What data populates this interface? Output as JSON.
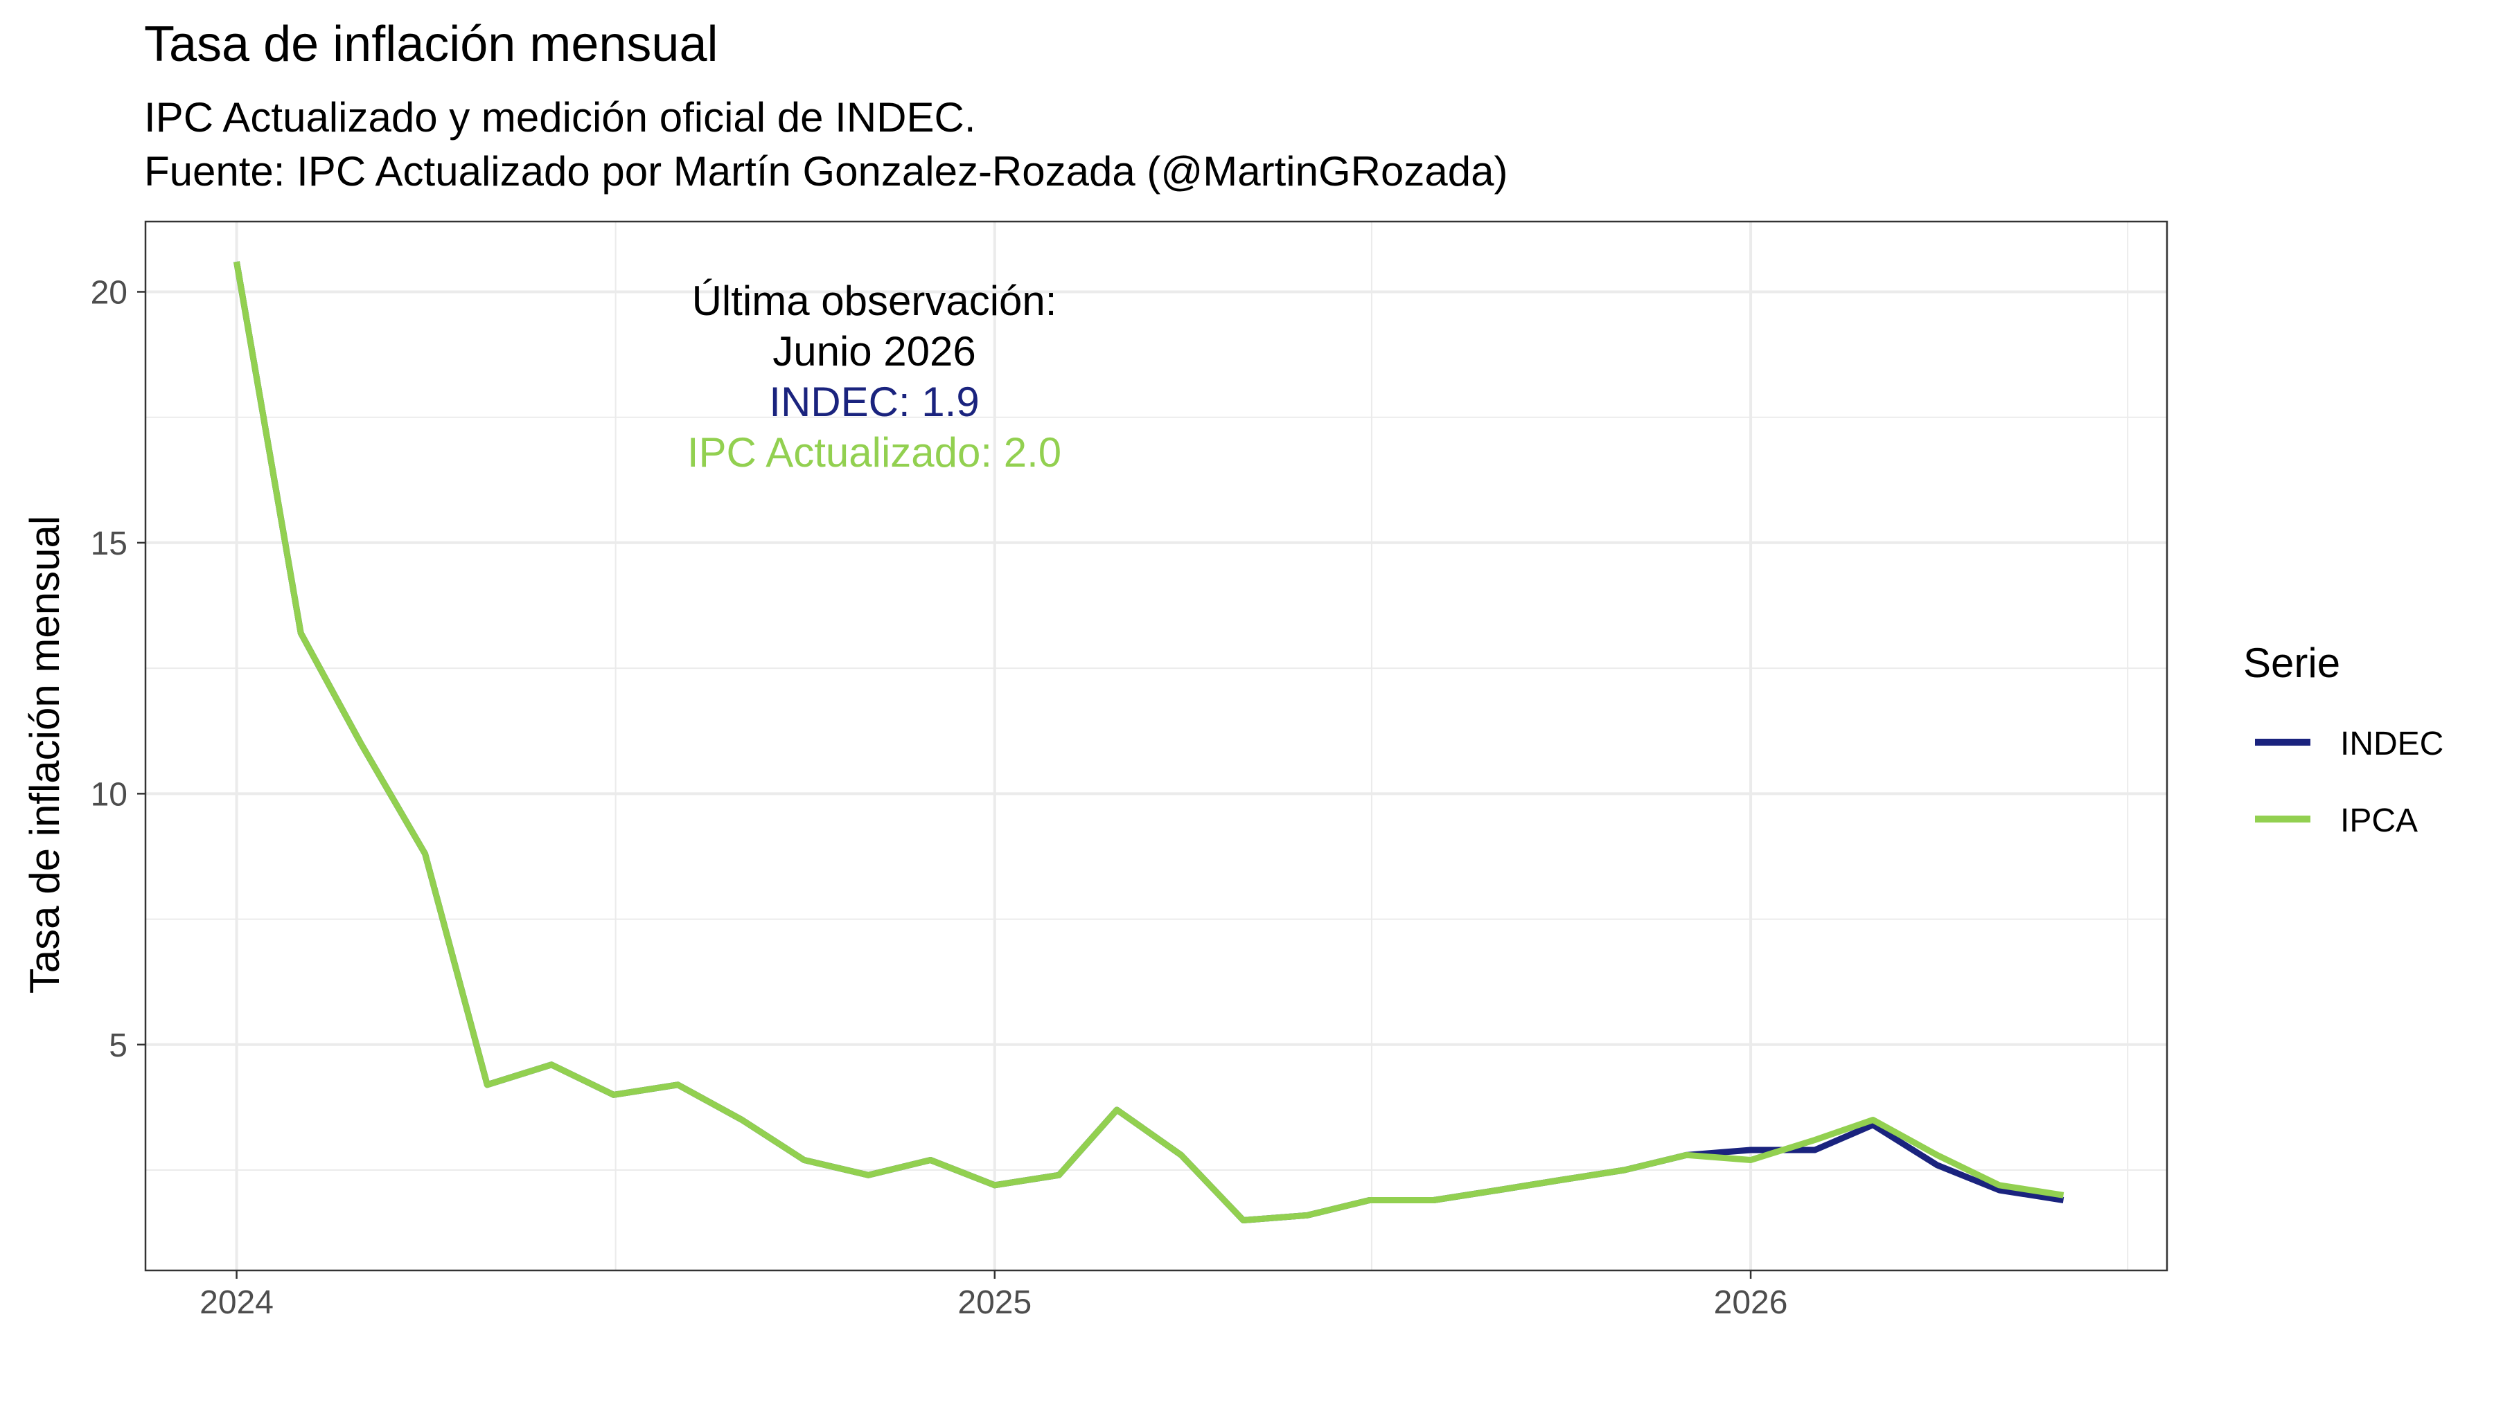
{
  "chart_data": {
    "type": "line",
    "title": "Tasa de inflación mensual",
    "subtitle_lines": [
      "IPC Actualizado y medición oficial de INDEC.",
      "Fuente: IPC Actualizado por Martín Gonzalez-Rozada (@MartinGRozada)"
    ],
    "xlabel": "",
    "ylabel": "Tasa de inflación mensual",
    "x_ticks": [
      "2024",
      "2025",
      "2026"
    ],
    "y_ticks": [
      "5",
      "10",
      "15",
      "20"
    ],
    "xlim": [
      "2023-11-18",
      "2026-07-21"
    ],
    "ylim": [
      0.5,
      21.4
    ],
    "grid": true,
    "legend": {
      "title": "Serie",
      "position": "right",
      "entries": [
        "INDEC",
        "IPCA"
      ]
    },
    "annotation": {
      "line1": "Última observación:",
      "line2": "Junio 2026",
      "line3": "INDEC:  1.9",
      "line4": "IPC Actualizado:  2.0"
    },
    "x": [
      "2024-01",
      "2024-02",
      "2024-03",
      "2024-04",
      "2024-05",
      "2024-06",
      "2024-07",
      "2024-08",
      "2024-09",
      "2024-10",
      "2024-11",
      "2024-12",
      "2025-01",
      "2025-02",
      "2025-03",
      "2025-04",
      "2025-05",
      "2025-06",
      "2025-07",
      "2025-08",
      "2025-09",
      "2025-10",
      "2025-11",
      "2025-12",
      "2026-01",
      "2026-02",
      "2026-03",
      "2026-04",
      "2026-05",
      "2026-06"
    ],
    "series": [
      {
        "name": "INDEC",
        "color": "#1a237e",
        "values": [
          20.6,
          13.2,
          11.0,
          8.8,
          4.2,
          4.6,
          4.0,
          4.2,
          3.5,
          2.7,
          2.4,
          2.7,
          2.2,
          2.4,
          3.7,
          2.8,
          1.5,
          1.6,
          1.9,
          1.9,
          2.1,
          2.3,
          2.5,
          2.8,
          2.9,
          2.9,
          3.4,
          2.6,
          2.1,
          1.9
        ]
      },
      {
        "name": "IPCA",
        "color": "#92d050",
        "values": [
          20.6,
          13.2,
          11.0,
          8.8,
          4.2,
          4.6,
          4.0,
          4.2,
          3.5,
          2.7,
          2.4,
          2.7,
          2.2,
          2.4,
          3.7,
          2.8,
          1.5,
          1.6,
          1.9,
          1.9,
          2.1,
          2.3,
          2.5,
          2.8,
          2.7,
          3.1,
          3.5,
          2.8,
          2.2,
          2.0
        ]
      }
    ]
  }
}
